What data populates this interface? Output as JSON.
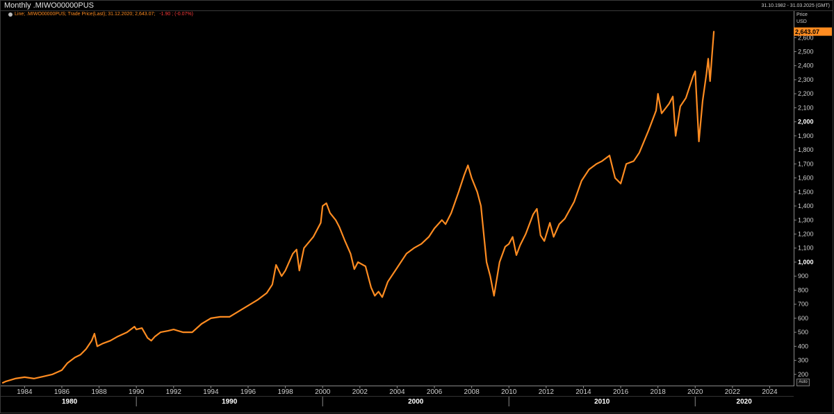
{
  "header": {
    "title": "Monthly .MIWO00000PUS",
    "date_range": "31.10.1982 - 31.03.2025 (GMT)"
  },
  "legend": {
    "prefix": "Line; .MIWO00000PUS; Trade Price(Last); 31.12.2020; 2,643.07;",
    "change": "-1.90 ; (-0.07%)"
  },
  "axis": {
    "title_line1": "Price",
    "title_line2": "USD",
    "auto_label": "Auto"
  },
  "colors": {
    "background": "#000000",
    "line": "#ff8c21",
    "change_negative": "#ff3b3b"
  },
  "chart_data": {
    "type": "line",
    "title": "Monthly .MIWO00000PUS",
    "xlabel": "",
    "ylabel": "Price USD",
    "xlim": [
      1982.83,
      2025.25
    ],
    "ylim": [
      120,
      2720
    ],
    "last_value_label": "2,643.07",
    "y_ticks": [
      {
        "v": 200,
        "label": "200"
      },
      {
        "v": 300,
        "label": "300"
      },
      {
        "v": 400,
        "label": "400"
      },
      {
        "v": 500,
        "label": "500"
      },
      {
        "v": 600,
        "label": "600"
      },
      {
        "v": 700,
        "label": "700"
      },
      {
        "v": 800,
        "label": "800"
      },
      {
        "v": 900,
        "label": "900"
      },
      {
        "v": 1000,
        "label": "1,000",
        "major": true
      },
      {
        "v": 1100,
        "label": "1,100"
      },
      {
        "v": 1200,
        "label": "1,200"
      },
      {
        "v": 1300,
        "label": "1,300"
      },
      {
        "v": 1400,
        "label": "1,400"
      },
      {
        "v": 1500,
        "label": "1,500"
      },
      {
        "v": 1600,
        "label": "1,600"
      },
      {
        "v": 1700,
        "label": "1,700"
      },
      {
        "v": 1800,
        "label": "1,800"
      },
      {
        "v": 1900,
        "label": "1,900"
      },
      {
        "v": 2000,
        "label": "2,000",
        "major": true
      },
      {
        "v": 2100,
        "label": "2,100"
      },
      {
        "v": 2200,
        "label": "2,200"
      },
      {
        "v": 2300,
        "label": "2,300"
      },
      {
        "v": 2400,
        "label": "2,400"
      },
      {
        "v": 2500,
        "label": "2,500"
      },
      {
        "v": 2600,
        "label": "2,600"
      }
    ],
    "x_ticks": [
      "1984",
      "1986",
      "1988",
      "1990",
      "1992",
      "1994",
      "1996",
      "1998",
      "2000",
      "2002",
      "2004",
      "2006",
      "2008",
      "2010",
      "2012",
      "2014",
      "2016",
      "2018",
      "2020",
      "2022",
      "2024"
    ],
    "x_decades": [
      {
        "year": 1980,
        "label": "1980"
      },
      {
        "year": 1990,
        "label": "1990"
      },
      {
        "year": 2000,
        "label": "2000"
      },
      {
        "year": 2010,
        "label": "2010"
      },
      {
        "year": 2020,
        "label": "2020"
      }
    ],
    "series": [
      {
        "points": [
          [
            1982.83,
            140
          ],
          [
            1983.0,
            150
          ],
          [
            1983.5,
            170
          ],
          [
            1984.0,
            180
          ],
          [
            1984.5,
            170
          ],
          [
            1985.0,
            185
          ],
          [
            1985.5,
            200
          ],
          [
            1986.0,
            230
          ],
          [
            1986.3,
            280
          ],
          [
            1986.7,
            320
          ],
          [
            1987.0,
            340
          ],
          [
            1987.3,
            380
          ],
          [
            1987.6,
            440
          ],
          [
            1987.75,
            490
          ],
          [
            1987.9,
            400
          ],
          [
            1988.2,
            420
          ],
          [
            1988.6,
            440
          ],
          [
            1989.0,
            470
          ],
          [
            1989.5,
            500
          ],
          [
            1989.9,
            540
          ],
          [
            1990.0,
            520
          ],
          [
            1990.3,
            530
          ],
          [
            1990.6,
            460
          ],
          [
            1990.8,
            440
          ],
          [
            1991.0,
            470
          ],
          [
            1991.3,
            500
          ],
          [
            1991.7,
            510
          ],
          [
            1992.0,
            520
          ],
          [
            1992.5,
            500
          ],
          [
            1993.0,
            500
          ],
          [
            1993.5,
            560
          ],
          [
            1994.0,
            600
          ],
          [
            1994.5,
            610
          ],
          [
            1995.0,
            610
          ],
          [
            1995.5,
            650
          ],
          [
            1996.0,
            690
          ],
          [
            1996.5,
            730
          ],
          [
            1997.0,
            780
          ],
          [
            1997.3,
            840
          ],
          [
            1997.5,
            980
          ],
          [
            1997.8,
            900
          ],
          [
            1998.0,
            940
          ],
          [
            1998.4,
            1060
          ],
          [
            1998.6,
            1090
          ],
          [
            1998.75,
            940
          ],
          [
            1999.0,
            1100
          ],
          [
            1999.5,
            1180
          ],
          [
            1999.9,
            1280
          ],
          [
            2000.0,
            1400
          ],
          [
            2000.2,
            1420
          ],
          [
            2000.4,
            1350
          ],
          [
            2000.7,
            1300
          ],
          [
            2000.9,
            1250
          ],
          [
            2001.2,
            1150
          ],
          [
            2001.5,
            1060
          ],
          [
            2001.7,
            950
          ],
          [
            2001.9,
            1000
          ],
          [
            2002.3,
            970
          ],
          [
            2002.6,
            820
          ],
          [
            2002.8,
            760
          ],
          [
            2003.0,
            790
          ],
          [
            2003.2,
            750
          ],
          [
            2003.5,
            860
          ],
          [
            2004.0,
            960
          ],
          [
            2004.5,
            1060
          ],
          [
            2004.9,
            1100
          ],
          [
            2005.3,
            1130
          ],
          [
            2005.7,
            1180
          ],
          [
            2006.0,
            1240
          ],
          [
            2006.4,
            1300
          ],
          [
            2006.6,
            1270
          ],
          [
            2006.9,
            1350
          ],
          [
            2007.3,
            1500
          ],
          [
            2007.6,
            1620
          ],
          [
            2007.8,
            1690
          ],
          [
            2008.0,
            1600
          ],
          [
            2008.3,
            1500
          ],
          [
            2008.5,
            1400
          ],
          [
            2008.8,
            1000
          ],
          [
            2009.0,
            900
          ],
          [
            2009.2,
            760
          ],
          [
            2009.5,
            1000
          ],
          [
            2009.8,
            1110
          ],
          [
            2010.0,
            1130
          ],
          [
            2010.2,
            1180
          ],
          [
            2010.4,
            1050
          ],
          [
            2010.6,
            1120
          ],
          [
            2010.9,
            1200
          ],
          [
            2011.3,
            1340
          ],
          [
            2011.5,
            1380
          ],
          [
            2011.7,
            1190
          ],
          [
            2011.9,
            1150
          ],
          [
            2012.2,
            1280
          ],
          [
            2012.4,
            1180
          ],
          [
            2012.7,
            1270
          ],
          [
            2013.0,
            1310
          ],
          [
            2013.5,
            1430
          ],
          [
            2013.9,
            1580
          ],
          [
            2014.3,
            1660
          ],
          [
            2014.7,
            1700
          ],
          [
            2015.0,
            1720
          ],
          [
            2015.4,
            1760
          ],
          [
            2015.7,
            1600
          ],
          [
            2016.0,
            1560
          ],
          [
            2016.3,
            1700
          ],
          [
            2016.7,
            1720
          ],
          [
            2017.0,
            1780
          ],
          [
            2017.5,
            1940
          ],
          [
            2017.9,
            2080
          ],
          [
            2018.0,
            2200
          ],
          [
            2018.2,
            2060
          ],
          [
            2018.6,
            2130
          ],
          [
            2018.8,
            2180
          ],
          [
            2018.95,
            1900
          ],
          [
            2019.2,
            2110
          ],
          [
            2019.5,
            2170
          ],
          [
            2019.9,
            2330
          ],
          [
            2020.0,
            2360
          ],
          [
            2020.1,
            2100
          ],
          [
            2020.2,
            1860
          ],
          [
            2020.4,
            2150
          ],
          [
            2020.6,
            2340
          ],
          [
            2020.7,
            2450
          ],
          [
            2020.8,
            2290
          ],
          [
            2020.9,
            2470
          ],
          [
            2021.0,
            2643
          ]
        ]
      }
    ]
  }
}
